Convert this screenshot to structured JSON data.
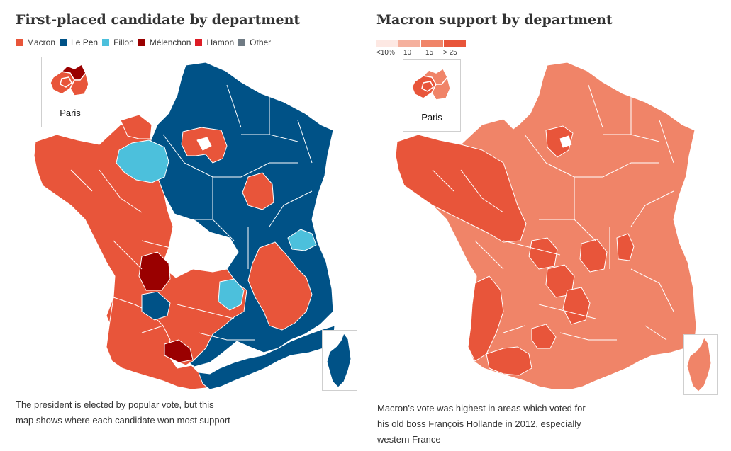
{
  "left_panel": {
    "title": "First-placed candidate by department",
    "legend": [
      {
        "label": "Macron",
        "color": "#e8553a"
      },
      {
        "label": "Le Pen",
        "color": "#005287"
      },
      {
        "label": "Fillon",
        "color": "#4cc0dc"
      },
      {
        "label": "Mélenchon",
        "color": "#9a0000"
      },
      {
        "label": "Hamon",
        "color": "#dd1c25"
      },
      {
        "label": "Other",
        "color": "#707b84"
      }
    ],
    "inset_label": "Paris",
    "caption_line1": "The president is elected by popular vote, but this",
    "caption_line2": "map shows where each candidate won most support"
  },
  "right_panel": {
    "title": "Macron support by department",
    "scale": [
      {
        "label": "<10%",
        "color": "#fde8e3"
      },
      {
        "label": "10",
        "color": "#f5b09d"
      },
      {
        "label": "15",
        "color": "#f08468"
      },
      {
        "label": "> 25",
        "color": "#e8553a"
      }
    ],
    "inset_label": "Paris",
    "caption_line1": "Macron's vote was highest in areas which voted for",
    "caption_line2": "his old boss François Hollande in 2012, especially",
    "caption_line3": "western France"
  },
  "colors": {
    "macron": "#e8553a",
    "lepen": "#005287",
    "fillon": "#4cc0dc",
    "melenchon": "#9a0000",
    "macron_mid": "#f08468",
    "macron_high": "#e8553a",
    "border": "#ffffff"
  }
}
